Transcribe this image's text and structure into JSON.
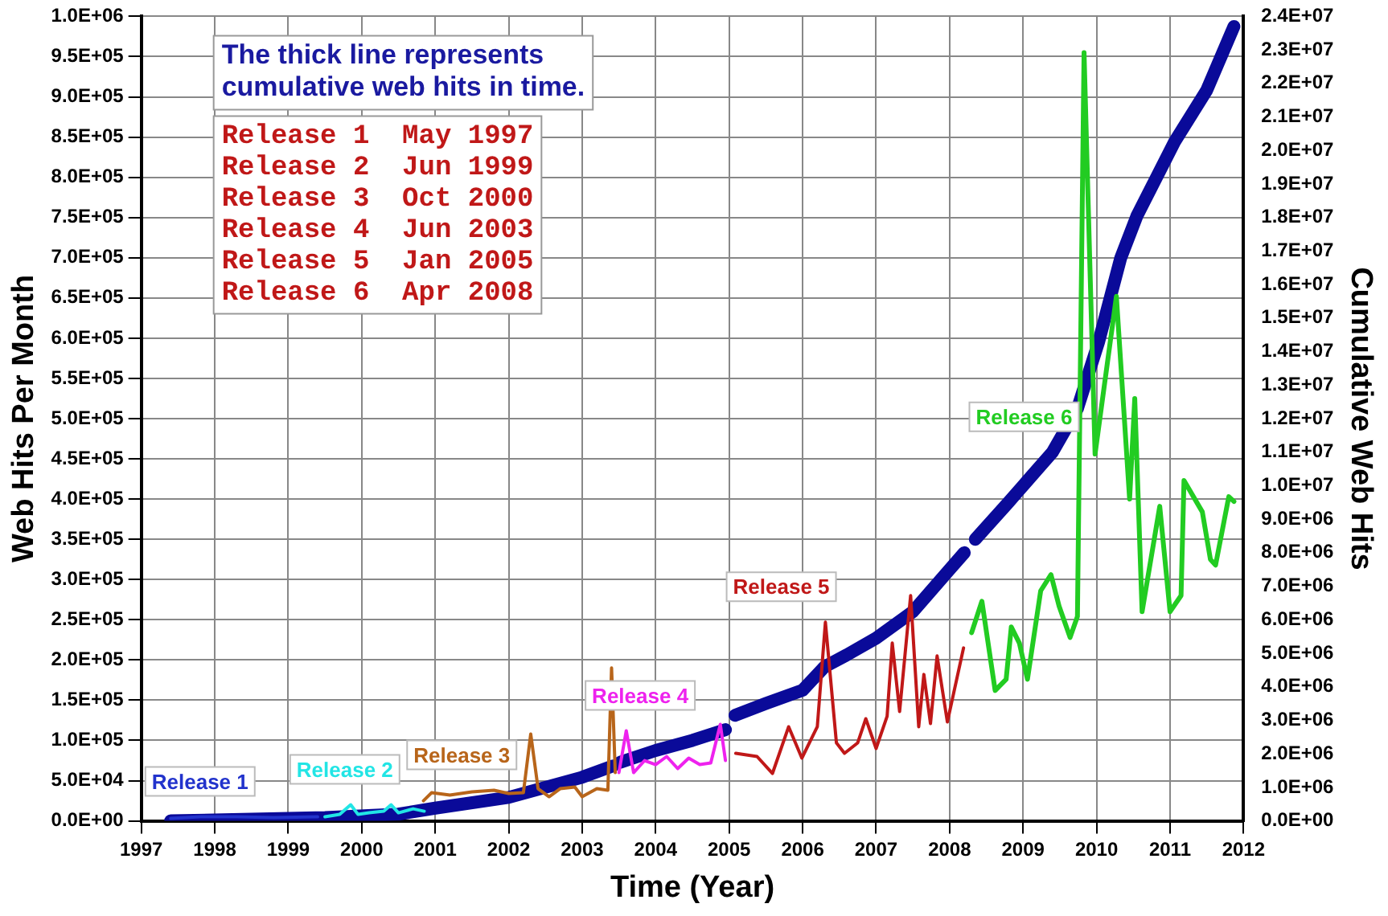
{
  "chart_data": {
    "type": "line",
    "xlabel": "Time (Year)",
    "ylabel": "Web Hits Per Month",
    "y2label": "Cumulative Web Hits",
    "xlim": [
      1997,
      2012
    ],
    "xticks": [
      1997,
      1998,
      1999,
      2000,
      2001,
      2002,
      2003,
      2004,
      2005,
      2006,
      2007,
      2008,
      2009,
      2010,
      2011,
      2012
    ],
    "ylim": [
      0,
      1000000
    ],
    "yticks": [
      {
        "value": 0,
        "label": "0.0E+00"
      },
      {
        "value": 50000,
        "label": "5.0E+04"
      },
      {
        "value": 100000,
        "label": "1.0E+05"
      },
      {
        "value": 150000,
        "label": "1.5E+05"
      },
      {
        "value": 200000,
        "label": "2.0E+05"
      },
      {
        "value": 250000,
        "label": "2.5E+05"
      },
      {
        "value": 300000,
        "label": "3.0E+05"
      },
      {
        "value": 350000,
        "label": "3.5E+05"
      },
      {
        "value": 400000,
        "label": "4.0E+05"
      },
      {
        "value": 450000,
        "label": "4.5E+05"
      },
      {
        "value": 500000,
        "label": "5.0E+05"
      },
      {
        "value": 550000,
        "label": "5.5E+05"
      },
      {
        "value": 600000,
        "label": "6.0E+05"
      },
      {
        "value": 650000,
        "label": "6.5E+05"
      },
      {
        "value": 700000,
        "label": "7.0E+05"
      },
      {
        "value": 750000,
        "label": "7.5E+05"
      },
      {
        "value": 800000,
        "label": "8.0E+05"
      },
      {
        "value": 850000,
        "label": "8.5E+05"
      },
      {
        "value": 900000,
        "label": "9.0E+05"
      },
      {
        "value": 950000,
        "label": "9.5E+05"
      },
      {
        "value": 1000000,
        "label": "1.0E+06"
      }
    ],
    "y2lim": [
      0,
      24000000
    ],
    "y2ticks": [
      {
        "value": 0,
        "label": "0.0E+00"
      },
      {
        "value": 1000000,
        "label": "1.0E+06"
      },
      {
        "value": 2000000,
        "label": "2.0E+06"
      },
      {
        "value": 3000000,
        "label": "3.0E+06"
      },
      {
        "value": 4000000,
        "label": "4.0E+06"
      },
      {
        "value": 5000000,
        "label": "5.0E+06"
      },
      {
        "value": 6000000,
        "label": "6.0E+06"
      },
      {
        "value": 7000000,
        "label": "7.0E+06"
      },
      {
        "value": 8000000,
        "label": "8.0E+06"
      },
      {
        "value": 9000000,
        "label": "9.0E+06"
      },
      {
        "value": 10000000,
        "label": "1.0E+07"
      },
      {
        "value": 11000000,
        "label": "1.1E+07"
      },
      {
        "value": 12000000,
        "label": "1.2E+07"
      },
      {
        "value": 13000000,
        "label": "1.3E+07"
      },
      {
        "value": 14000000,
        "label": "1.4E+07"
      },
      {
        "value": 15000000,
        "label": "1.5E+07"
      },
      {
        "value": 16000000,
        "label": "1.6E+07"
      },
      {
        "value": 17000000,
        "label": "1.7E+07"
      },
      {
        "value": 18000000,
        "label": "1.8E+07"
      },
      {
        "value": 19000000,
        "label": "1.9E+07"
      },
      {
        "value": 20000000,
        "label": "2.0E+07"
      },
      {
        "value": 21000000,
        "label": "2.1E+07"
      },
      {
        "value": 22000000,
        "label": "2.2E+07"
      },
      {
        "value": 23000000,
        "label": "2.3E+07"
      },
      {
        "value": 24000000,
        "label": "2.4E+07"
      }
    ],
    "grid": true,
    "legend": false,
    "marker": "none",
    "series": [
      {
        "name": "Release 1",
        "color": "#2233cc",
        "x": [
          1997.4,
          1997.8,
          1998.3,
          1998.8,
          1999.4
        ],
        "values": [
          3000,
          5000,
          5000,
          4000,
          5000
        ]
      },
      {
        "name": "Release 2",
        "color": "#22e5e5",
        "x": [
          1999.5,
          1999.7,
          1999.85,
          1999.95,
          2000.1,
          2000.3,
          2000.4,
          2000.5,
          2000.7,
          2000.85
        ],
        "values": [
          5000,
          8000,
          20000,
          8000,
          10000,
          12000,
          20000,
          10000,
          15000,
          12000
        ]
      },
      {
        "name": "Release 3",
        "color": "#b8651a",
        "x": [
          2000.84,
          2000.95,
          2001.2,
          2001.5,
          2001.8,
          2002.0,
          2002.2,
          2002.3,
          2002.4,
          2002.55,
          2002.7,
          2002.9,
          2003.0,
          2003.2,
          2003.35,
          2003.4,
          2003.45
        ],
        "values": [
          25000,
          35000,
          32000,
          36000,
          38000,
          34000,
          35000,
          108000,
          40000,
          30000,
          40000,
          42000,
          30000,
          40000,
          38000,
          190000,
          60000
        ]
      },
      {
        "name": "Release 4",
        "color": "#ee22ee",
        "x": [
          2003.5,
          2003.6,
          2003.7,
          2003.85,
          2004.0,
          2004.15,
          2004.3,
          2004.45,
          2004.6,
          2004.75,
          2004.88,
          2004.95
        ],
        "values": [
          60000,
          112000,
          60000,
          75000,
          70000,
          80000,
          65000,
          78000,
          70000,
          72000,
          120000,
          75000
        ]
      },
      {
        "name": "Release 5",
        "color": "#c01818",
        "x": [
          2005.09,
          2005.38,
          2005.59,
          2005.81,
          2005.99,
          2006.2,
          2006.31,
          2006.46,
          2006.57,
          2006.75,
          2006.86,
          2007.0,
          2007.15,
          2007.22,
          2007.32,
          2007.47,
          2007.58,
          2007.65,
          2007.74,
          2007.83,
          2007.97,
          2008.19
        ],
        "values": [
          84000,
          80000,
          59000,
          117000,
          78000,
          117000,
          247000,
          97000,
          84000,
          97000,
          127000,
          90000,
          130000,
          221000,
          136000,
          280000,
          117000,
          182000,
          121000,
          205000,
          123000,
          215000
        ]
      },
      {
        "name": "Release 6",
        "color": "#22cc22",
        "x": [
          2008.3,
          2008.44,
          2008.62,
          2008.77,
          2008.84,
          2008.95,
          2009.06,
          2009.24,
          2009.38,
          2009.49,
          2009.64,
          2009.74,
          2009.83,
          2009.98,
          2010.27,
          2010.45,
          2010.52,
          2010.62,
          2010.86,
          2011.0,
          2011.15,
          2011.19,
          2011.44,
          2011.55,
          2011.62,
          2011.8,
          2011.87
        ],
        "values": [
          234000,
          273000,
          162000,
          176000,
          241000,
          221000,
          176000,
          286000,
          306000,
          267000,
          228000,
          254000,
          955000,
          456000,
          652000,
          400000,
          525000,
          260000,
          391000,
          260000,
          280000,
          423000,
          384000,
          325000,
          318000,
          403000,
          397000
        ]
      },
      {
        "color": "#0a0a99",
        "axis": "y2",
        "x": [
          1997.4,
          1998.5,
          1999.5,
          2000.5,
          2001,
          2002,
          2003,
          2003.42,
          2003.47,
          2003.52,
          2004,
          2004.5,
          2004.95,
          2005.0,
          2005.08,
          2005.5,
          2006,
          2006.3,
          2006.6,
          2007,
          2007.5,
          2008,
          2008.2,
          2008.27,
          2008.35,
          2008.8,
          2009.0,
          2009.4,
          2009.74,
          2010.03,
          2010.33,
          2010.55,
          2011.06,
          2011.5,
          2011.87
        ],
        "values": [
          0,
          50000,
          100000,
          200000,
          380000,
          700000,
          1300000,
          1640000,
          null,
          1750000,
          2100000,
          2400000,
          2720000,
          null,
          3150000,
          3500000,
          3900000,
          4600000,
          4950000,
          5450000,
          6240000,
          7500000,
          8000000,
          null,
          8400000,
          9500000,
          10000000,
          11000000,
          12300000,
          14300000,
          16800000,
          18050000,
          20250000,
          21800000,
          23700000
        ]
      }
    ],
    "annotations": [
      "The thick line represents cumulative web hits in time.",
      "Release 1  May 1997",
      "Release 2  Jun 1999",
      "Release 3  Oct 2000",
      "Release 4  Jun 2003",
      "Release 5  Jan 2005",
      "Release 6  Apr 2008"
    ]
  }
}
